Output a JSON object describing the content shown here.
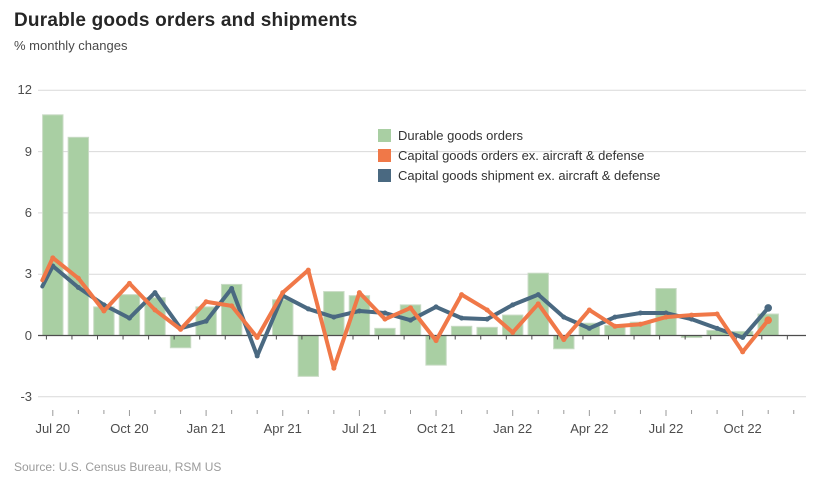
{
  "header": {
    "title": "Durable goods orders and shipments",
    "subtitle": "% monthly changes"
  },
  "footer": {
    "source": "Source: U.S. Census Bureau, RSM US"
  },
  "colors": {
    "bar_fill": "#a9cfa3",
    "bar_stroke": "#c9dbc5",
    "orders_line": "#f07848",
    "shipments_line": "#4a6981",
    "gridline": "#d9d9d9",
    "zero_line": "#4d4d4d",
    "axis_text": "#4d4d4d",
    "minor_tick": "#9a9a9a"
  },
  "chart_data": {
    "type": "bar+line combo",
    "title": "Durable goods orders and shipments",
    "ylabel": "% monthly changes",
    "grid": "horizontal on",
    "legend_position": "inside top-right",
    "ylim": [
      -3,
      12
    ],
    "yticks": [
      12,
      9,
      6,
      3,
      0,
      -3
    ],
    "categories": [
      "Jul 20",
      "Aug 20",
      "Sep 20",
      "Oct 20",
      "Nov 20",
      "Dec 20",
      "Jan 21",
      "Feb 21",
      "Mar 21",
      "Apr 21",
      "May 21",
      "Jun 21",
      "Jul 21",
      "Aug 21",
      "Sep 21",
      "Oct 21",
      "Nov 21",
      "Dec 21",
      "Jan 22",
      "Feb 22",
      "Mar 22",
      "Apr 22",
      "May 22",
      "Jun 22",
      "Jul 22",
      "Aug 22",
      "Sep 22",
      "Oct 22",
      "Nov 22"
    ],
    "x_tick_labels": [
      {
        "i": 0,
        "label": "Jul 20"
      },
      {
        "i": 3,
        "label": "Oct 20"
      },
      {
        "i": 6,
        "label": "Jan 21"
      },
      {
        "i": 9,
        "label": "Apr 21"
      },
      {
        "i": 12,
        "label": "Jul 21"
      },
      {
        "i": 15,
        "label": "Oct 21"
      },
      {
        "i": 18,
        "label": "Jan 22"
      },
      {
        "i": 21,
        "label": "Apr 22"
      },
      {
        "i": 24,
        "label": "Jul 22"
      },
      {
        "i": 27,
        "label": "Oct 22"
      }
    ],
    "series": [
      {
        "name": "Durable goods orders",
        "type": "bar",
        "color": "#a9cfa3",
        "values": [
          10.8,
          9.7,
          1.4,
          2.0,
          1.85,
          -0.6,
          1.4,
          2.5,
          0.05,
          1.75,
          -2.0,
          2.15,
          1.95,
          0.35,
          1.5,
          -1.45,
          0.45,
          0.4,
          1.0,
          3.05,
          -0.65,
          0.6,
          0.5,
          0.65,
          2.3,
          -0.1,
          0.25,
          0.2,
          1.05
        ]
      },
      {
        "name": "Capital goods orders ex. aircraft & defense",
        "type": "line",
        "color": "#f07848",
        "lead_in_edge_value": 2.7,
        "values": [
          3.8,
          2.8,
          1.2,
          2.55,
          1.25,
          0.3,
          1.65,
          1.45,
          -0.1,
          2.1,
          3.2,
          -1.6,
          2.1,
          0.8,
          1.35,
          -0.25,
          2.0,
          1.25,
          0.15,
          1.55,
          -0.2,
          1.25,
          0.45,
          0.55,
          0.9,
          1.0,
          1.05,
          -0.8,
          0.75
        ]
      },
      {
        "name": "Capital goods shipment ex. aircraft & defense",
        "type": "line",
        "color": "#4a6981",
        "lead_in_edge_value": 2.4,
        "values": [
          3.4,
          2.35,
          1.5,
          0.85,
          2.1,
          0.35,
          0.7,
          2.3,
          -1.0,
          1.95,
          1.3,
          0.9,
          1.2,
          1.1,
          0.75,
          1.4,
          0.85,
          0.8,
          1.5,
          2.0,
          0.9,
          0.35,
          0.9,
          1.1,
          1.1,
          0.8,
          0.35,
          -0.1,
          1.35
        ]
      }
    ]
  }
}
